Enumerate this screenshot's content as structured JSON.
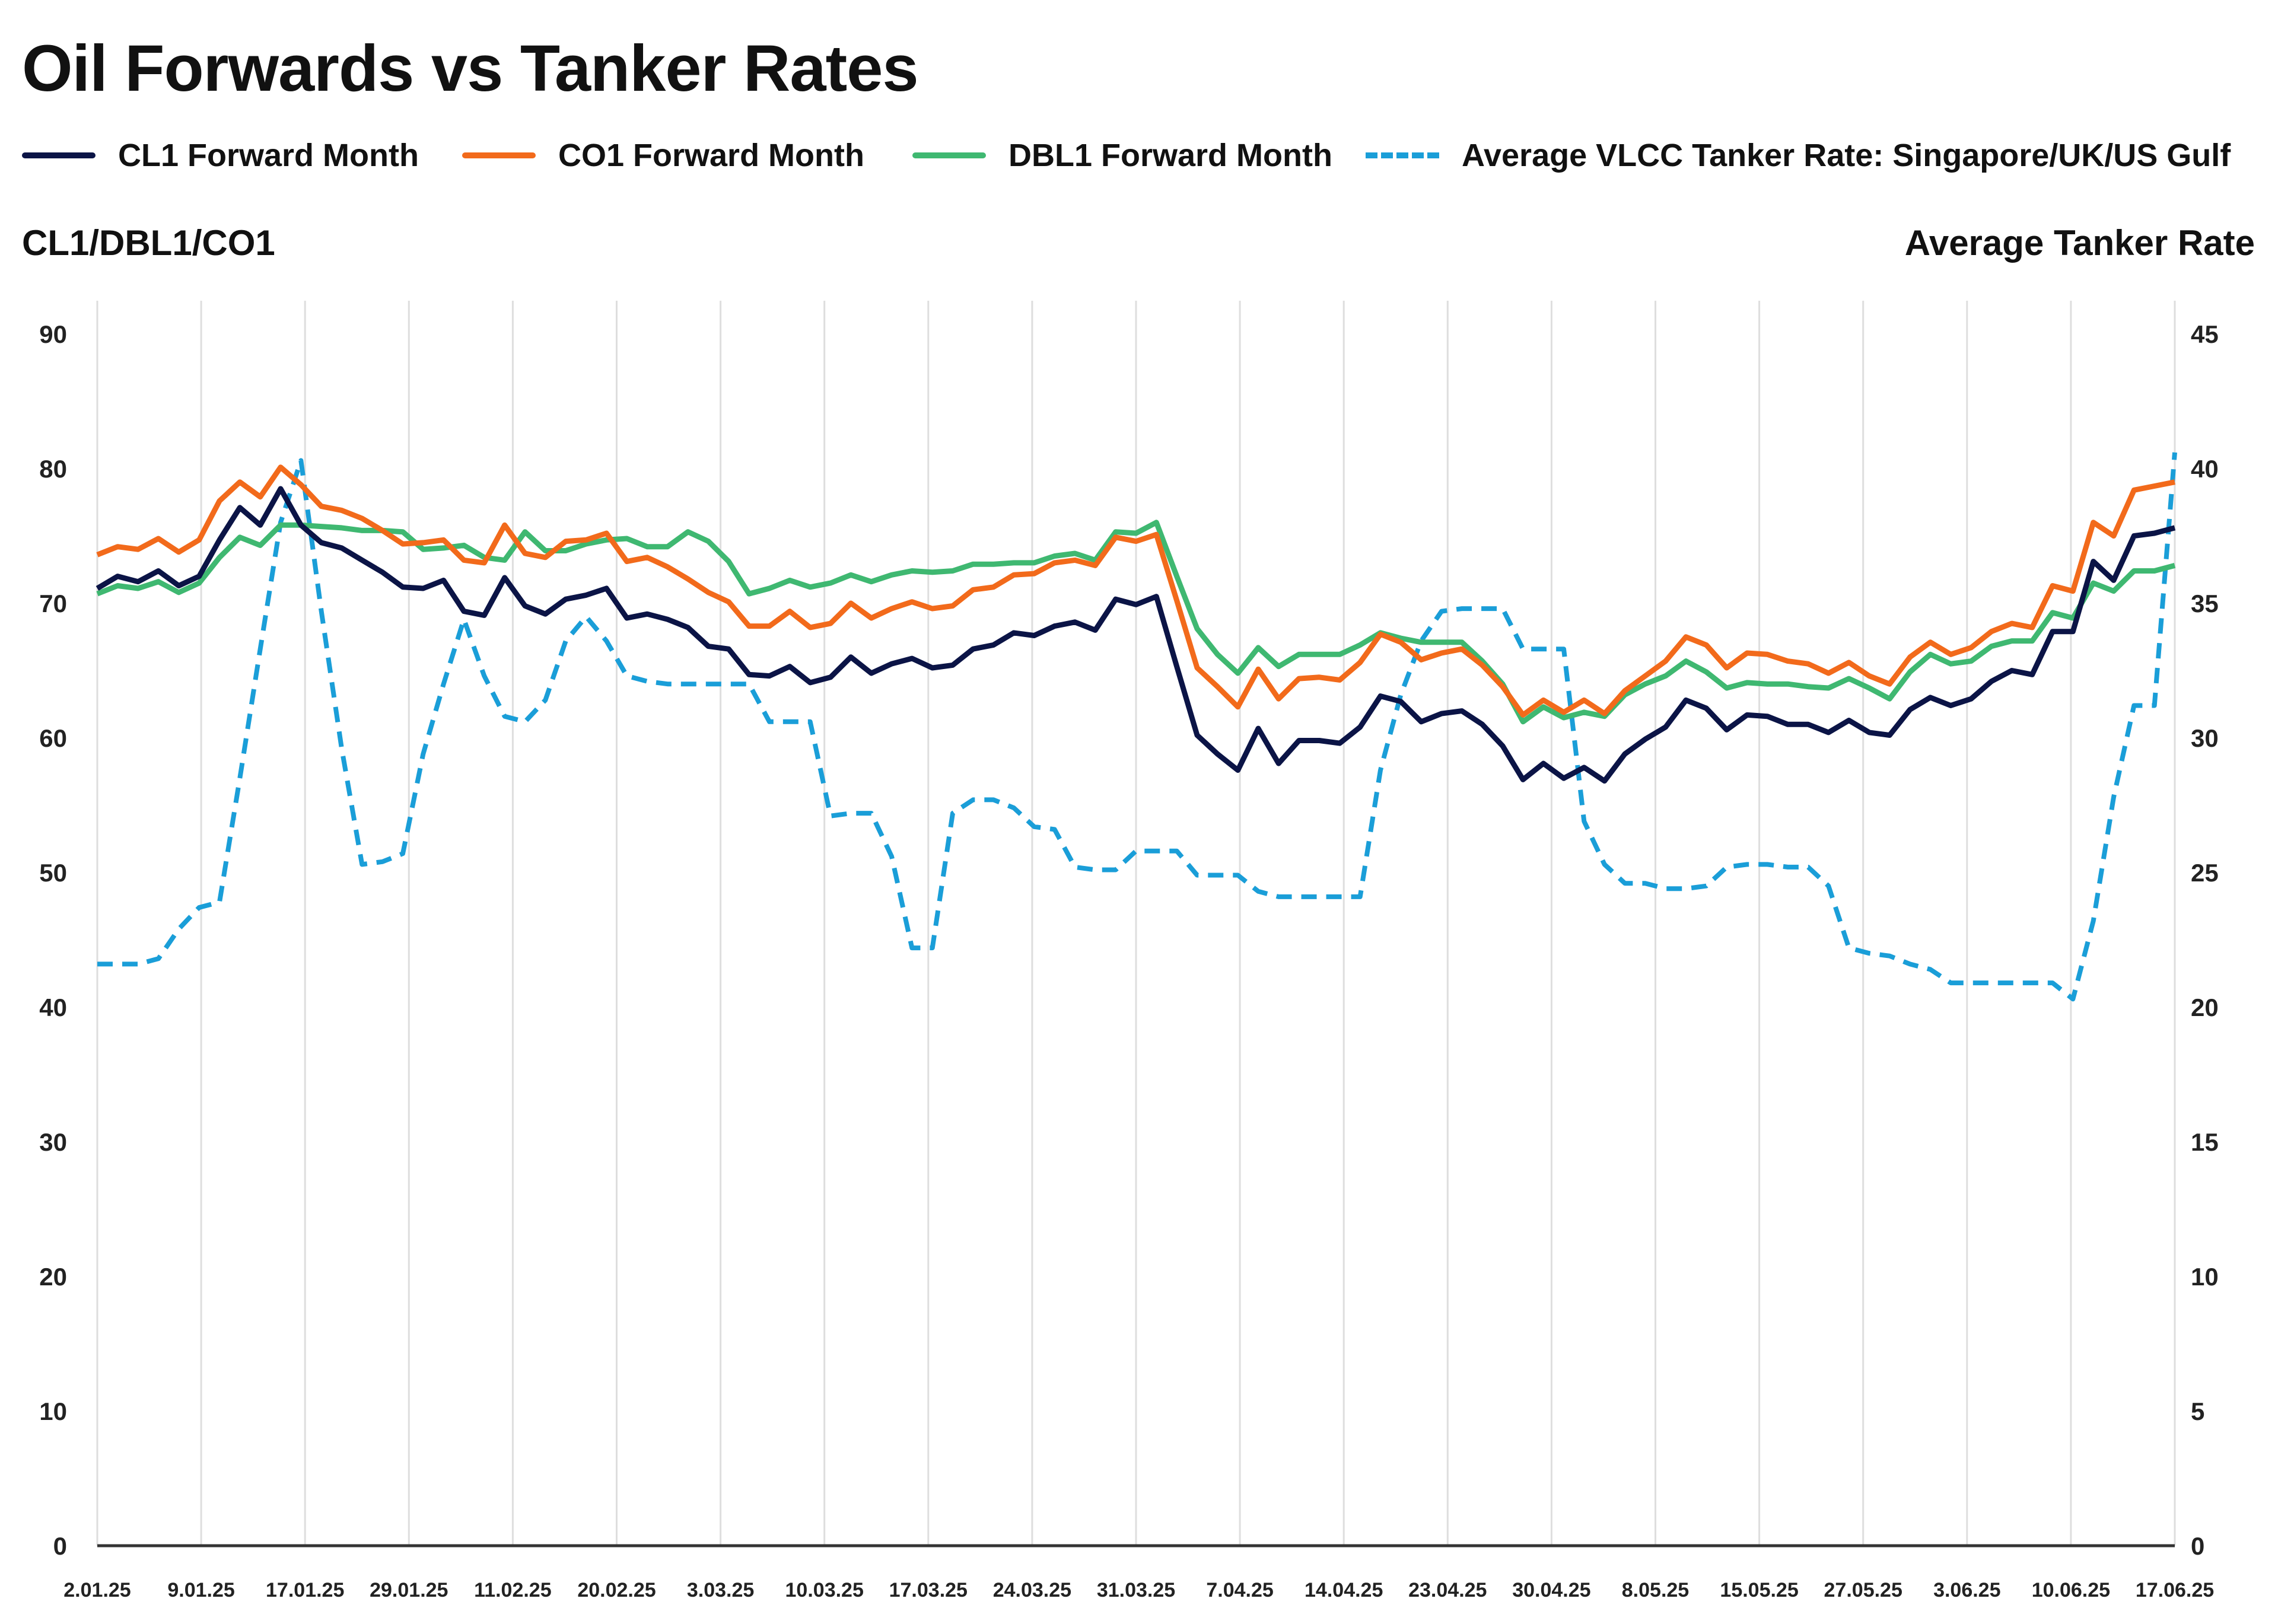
{
  "title": "Oil Forwards vs Tanker Rates",
  "legend": [
    {
      "label": "CL1 Forward Month",
      "color": "#0b1446",
      "style": "solid"
    },
    {
      "label": "CO1 Forward Month",
      "color": "#f26a1b",
      "style": "solid"
    },
    {
      "label": "DBL1 Forward Month",
      "color": "#3fb871",
      "style": "solid"
    },
    {
      "label": "Average VLCC Tanker Rate: Singapore/UK/US Gulf",
      "color": "#1a9ed8",
      "style": "dashed"
    }
  ],
  "chart_data": {
    "type": "line",
    "title": "Oil Forwards vs Tanker Rates",
    "ylabel": "CL1/DBL1/CO1",
    "y2label": "Average Tanker Rate",
    "ylim": [
      0,
      90
    ],
    "y2lim": [
      0,
      45
    ],
    "yticks": [
      "0",
      "10",
      "20",
      "30",
      "40",
      "50",
      "60",
      "70",
      "80",
      "90"
    ],
    "y2ticks": [
      "0",
      "5",
      "10",
      "15",
      "20",
      "25",
      "30",
      "35",
      "40",
      "45"
    ],
    "x_tick_labels": [
      "2.01.25",
      "9.01.25",
      "17.01.25",
      "29.01.25",
      "11.02.25",
      "20.02.25",
      "3.03.25",
      "10.03.25",
      "17.03.25",
      "24.03.25",
      "31.03.25",
      "7.04.25",
      "14.04.25",
      "23.04.25",
      "30.04.25",
      "8.05.25",
      "15.05.25",
      "27.05.25",
      "3.06.25",
      "10.06.25",
      "17.06.25"
    ],
    "grid": "vertical",
    "legend_position": "top",
    "series": [
      {
        "name": "CL1 Forward Month",
        "axis": "left",
        "color": "#0b1446",
        "values": [
          71.1,
          72.0,
          71.6,
          72.4,
          71.3,
          72.0,
          74.7,
          77.1,
          75.8,
          78.5,
          75.8,
          74.5,
          74.1,
          73.2,
          72.3,
          71.2,
          71.1,
          71.7,
          69.4,
          69.1,
          71.9,
          69.8,
          69.2,
          70.3,
          70.6,
          71.1,
          68.9,
          69.2,
          68.8,
          68.2,
          66.8,
          66.6,
          64.7,
          64.6,
          65.3,
          64.1,
          64.5,
          66.0,
          64.8,
          65.5,
          65.9,
          65.2,
          65.4,
          66.6,
          66.9,
          67.8,
          67.6,
          68.3,
          68.6,
          68.0,
          70.3,
          69.9,
          70.5,
          65.3,
          60.2,
          58.8,
          57.6,
          60.7,
          58.1,
          59.8,
          59.8,
          59.6,
          60.8,
          63.1,
          62.7,
          61.2,
          61.8,
          62.0,
          61.0,
          59.4,
          56.9,
          58.1,
          57.0,
          57.8,
          56.8,
          58.8,
          59.9,
          60.8,
          62.8,
          62.2,
          60.6,
          61.7,
          61.6,
          61.0,
          61.0,
          60.4,
          61.3,
          60.4,
          60.2,
          62.1,
          63.0,
          62.4,
          62.9,
          64.2,
          65.0,
          64.7,
          67.9,
          67.9,
          73.1,
          71.7,
          75.0,
          75.2,
          75.6
        ]
      },
      {
        "name": "CO1 Forward Month",
        "axis": "left",
        "color": "#f26a1b",
        "values": [
          73.6,
          74.2,
          74.0,
          74.8,
          73.8,
          74.7,
          77.6,
          79.0,
          77.9,
          80.1,
          78.8,
          77.2,
          76.9,
          76.3,
          75.4,
          74.4,
          74.5,
          74.7,
          73.2,
          73.0,
          75.8,
          73.7,
          73.4,
          74.6,
          74.7,
          75.2,
          73.1,
          73.4,
          72.7,
          71.8,
          70.8,
          70.1,
          68.3,
          68.3,
          69.4,
          68.2,
          68.5,
          70.0,
          68.9,
          69.6,
          70.1,
          69.6,
          69.8,
          71.0,
          71.2,
          72.1,
          72.2,
          73.0,
          73.2,
          72.8,
          74.9,
          74.6,
          75.1,
          70.2,
          65.2,
          63.8,
          62.3,
          65.1,
          62.9,
          64.4,
          64.5,
          64.3,
          65.6,
          67.7,
          67.1,
          65.8,
          66.3,
          66.6,
          65.4,
          63.8,
          61.7,
          62.8,
          61.9,
          62.8,
          61.8,
          63.5,
          64.6,
          65.7,
          67.5,
          66.9,
          65.2,
          66.3,
          66.2,
          65.7,
          65.5,
          64.8,
          65.6,
          64.6,
          64.0,
          66.0,
          67.1,
          66.2,
          66.7,
          67.9,
          68.5,
          68.2,
          71.3,
          70.9,
          76.0,
          75.0,
          78.4,
          78.7,
          79.0
        ]
      },
      {
        "name": "DBL1 Forward Month",
        "axis": "left",
        "color": "#3fb871",
        "values": [
          70.7,
          71.3,
          71.1,
          71.6,
          70.8,
          71.5,
          73.4,
          74.9,
          74.3,
          75.8,
          75.8,
          75.7,
          75.6,
          75.4,
          75.4,
          75.3,
          74.0,
          74.1,
          74.3,
          73.4,
          73.2,
          75.3,
          73.9,
          73.9,
          74.4,
          74.7,
          74.8,
          74.2,
          74.2,
          75.3,
          74.6,
          73.1,
          70.7,
          71.1,
          71.7,
          71.2,
          71.5,
          72.1,
          71.6,
          72.1,
          72.4,
          72.3,
          72.4,
          72.9,
          72.9,
          73.0,
          73.0,
          73.5,
          73.7,
          73.2,
          75.3,
          75.2,
          76.0,
          72.0,
          68.1,
          66.2,
          64.8,
          66.7,
          65.3,
          66.2,
          66.2,
          66.2,
          66.9,
          67.8,
          67.4,
          67.1,
          67.1,
          67.1,
          65.7,
          64.0,
          61.2,
          62.3,
          61.5,
          61.9,
          61.6,
          63.2,
          64.0,
          64.6,
          65.7,
          64.9,
          63.7,
          64.1,
          64.0,
          64.0,
          63.8,
          63.7,
          64.4,
          63.7,
          62.9,
          64.9,
          66.2,
          65.5,
          65.7,
          66.8,
          67.2,
          67.2,
          69.3,
          68.9,
          71.5,
          70.9,
          72.4,
          72.4,
          72.8
        ]
      },
      {
        "name": "Average VLCC Tanker Rate: Singapore/UK/US Gulf",
        "axis": "right",
        "color": "#1a9ed8",
        "dashed": true,
        "values": [
          21.6,
          21.6,
          21.6,
          21.8,
          22.9,
          23.7,
          23.9,
          28.5,
          33.3,
          38.0,
          40.3,
          34.7,
          29.6,
          25.3,
          25.4,
          25.7,
          29.4,
          32.0,
          34.4,
          32.3,
          30.8,
          30.6,
          31.4,
          33.6,
          34.5,
          33.6,
          32.3,
          32.1,
          32.0,
          32.0,
          32.0,
          32.0,
          32.0,
          30.6,
          30.6,
          30.6,
          27.1,
          27.2,
          27.2,
          25.6,
          22.2,
          22.2,
          27.2,
          27.7,
          27.7,
          27.4,
          26.7,
          26.6,
          25.2,
          25.1,
          25.1,
          25.8,
          25.8,
          25.8,
          24.9,
          24.9,
          24.9,
          24.3,
          24.1,
          24.1,
          24.1,
          24.1,
          24.1,
          28.8,
          31.6,
          33.6,
          34.7,
          34.8,
          34.8,
          34.8,
          33.3,
          33.3,
          33.3,
          26.9,
          25.3,
          24.6,
          24.6,
          24.4,
          24.4,
          24.5,
          25.2,
          25.3,
          25.3,
          25.2,
          25.2,
          24.5,
          22.2,
          22.0,
          21.9,
          21.6,
          21.4,
          20.9,
          20.9,
          20.9,
          20.9,
          20.9,
          20.9,
          20.3,
          23.2,
          27.8,
          31.2,
          31.2,
          40.6
        ]
      }
    ]
  }
}
